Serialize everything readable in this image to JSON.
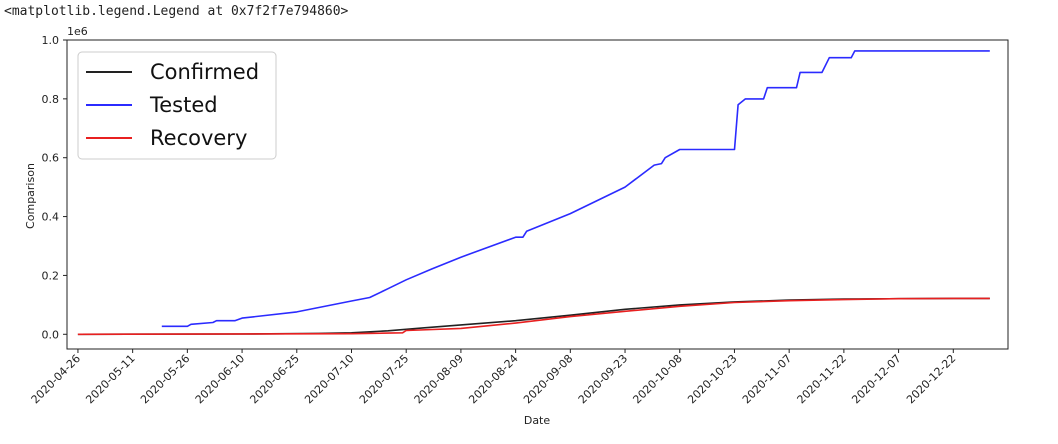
{
  "output_text": "<matplotlib.legend.Legend at 0x7f2f7e794860>",
  "chart_data": {
    "type": "line",
    "xlabel": "Date",
    "ylabel": "Comparison",
    "offset_text": "1e6",
    "x_ticks": [
      "2020-04-26",
      "2020-05-11",
      "2020-05-26",
      "2020-06-10",
      "2020-06-25",
      "2020-07-10",
      "2020-07-25",
      "2020-08-09",
      "2020-08-24",
      "2020-09-08",
      "2020-09-23",
      "2020-10-08",
      "2020-10-23",
      "2020-11-07",
      "2020-11-22",
      "2020-12-07",
      "2020-12-22"
    ],
    "y_ticks": [
      0.0,
      0.2,
      0.4,
      0.6,
      0.8,
      1.0
    ],
    "y_tick_labels": [
      "0.0",
      "0.2",
      "0.4",
      "0.6",
      "0.8",
      "1.0"
    ],
    "xlim": [
      "2020-04-23",
      "2021-01-06"
    ],
    "ylim": [
      -0.05,
      1.0
    ],
    "legend_position": "upper left",
    "grid": false,
    "series": [
      {
        "name": "Confirmed",
        "color": "#222222",
        "points": [
          [
            "2020-04-26",
            0.0
          ],
          [
            "2020-06-10",
            0.001
          ],
          [
            "2020-07-01",
            0.003
          ],
          [
            "2020-07-10",
            0.005
          ],
          [
            "2020-07-20",
            0.012
          ],
          [
            "2020-07-30",
            0.022
          ],
          [
            "2020-08-09",
            0.032
          ],
          [
            "2020-08-24",
            0.046
          ],
          [
            "2020-09-08",
            0.065
          ],
          [
            "2020-09-23",
            0.085
          ],
          [
            "2020-10-08",
            0.1
          ],
          [
            "2020-10-23",
            0.11
          ],
          [
            "2020-11-07",
            0.116
          ],
          [
            "2020-11-22",
            0.12
          ],
          [
            "2020-12-07",
            0.121
          ],
          [
            "2020-12-22",
            0.122
          ],
          [
            "2021-01-01",
            0.122
          ]
        ]
      },
      {
        "name": "Tested",
        "color": "#2b2bff",
        "points": [
          [
            "2020-05-19",
            0.027
          ],
          [
            "2020-05-26",
            0.027
          ],
          [
            "2020-05-27",
            0.034
          ],
          [
            "2020-06-02",
            0.04
          ],
          [
            "2020-06-03",
            0.046
          ],
          [
            "2020-06-08",
            0.046
          ],
          [
            "2020-06-10",
            0.055
          ],
          [
            "2020-06-25",
            0.076
          ],
          [
            "2020-07-10",
            0.113
          ],
          [
            "2020-07-15",
            0.125
          ],
          [
            "2020-07-20",
            0.155
          ],
          [
            "2020-07-25",
            0.185
          ],
          [
            "2020-08-01",
            0.222
          ],
          [
            "2020-08-09",
            0.262
          ],
          [
            "2020-08-24",
            0.33
          ],
          [
            "2020-08-26",
            0.33
          ],
          [
            "2020-08-27",
            0.35
          ],
          [
            "2020-09-08",
            0.41
          ],
          [
            "2020-09-23",
            0.5
          ],
          [
            "2020-10-01",
            0.575
          ],
          [
            "2020-10-03",
            0.58
          ],
          [
            "2020-10-04",
            0.6
          ],
          [
            "2020-10-08",
            0.628
          ],
          [
            "2020-10-23",
            0.628
          ],
          [
            "2020-10-24",
            0.78
          ],
          [
            "2020-10-26",
            0.8
          ],
          [
            "2020-10-31",
            0.8
          ],
          [
            "2020-11-01",
            0.838
          ],
          [
            "2020-11-09",
            0.838
          ],
          [
            "2020-11-10",
            0.89
          ],
          [
            "2020-11-16",
            0.89
          ],
          [
            "2020-11-18",
            0.94
          ],
          [
            "2020-11-24",
            0.94
          ],
          [
            "2020-11-25",
            0.963
          ],
          [
            "2021-01-01",
            0.963
          ]
        ]
      },
      {
        "name": "Recovery",
        "color": "#e82020",
        "points": [
          [
            "2020-04-26",
            0.0
          ],
          [
            "2020-07-10",
            0.002
          ],
          [
            "2020-07-24",
            0.005
          ],
          [
            "2020-07-25",
            0.013
          ],
          [
            "2020-08-09",
            0.02
          ],
          [
            "2020-08-24",
            0.038
          ],
          [
            "2020-09-08",
            0.06
          ],
          [
            "2020-09-23",
            0.078
          ],
          [
            "2020-10-08",
            0.095
          ],
          [
            "2020-10-23",
            0.108
          ],
          [
            "2020-11-07",
            0.114
          ],
          [
            "2020-11-22",
            0.118
          ],
          [
            "2020-12-07",
            0.121
          ],
          [
            "2020-12-22",
            0.122
          ],
          [
            "2021-01-01",
            0.122
          ]
        ]
      }
    ]
  }
}
